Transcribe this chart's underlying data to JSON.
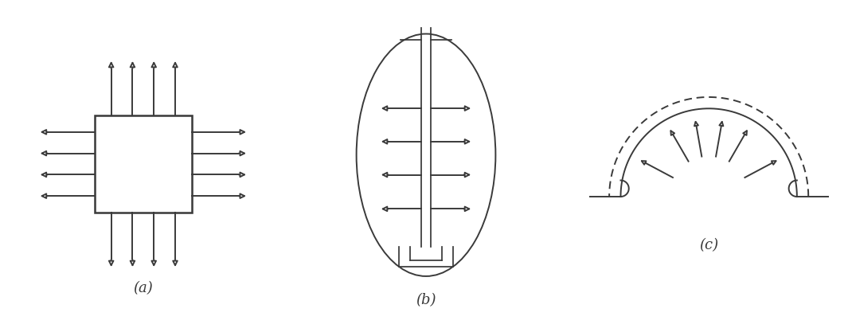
{
  "bg_color": "#ffffff",
  "line_color": "#3a3a3a",
  "label_a": "(a)",
  "label_b": "(b)",
  "label_c": "(c)",
  "label_fontsize": 13,
  "fig_width": 10.7,
  "fig_height": 4.12,
  "dpi": 100
}
